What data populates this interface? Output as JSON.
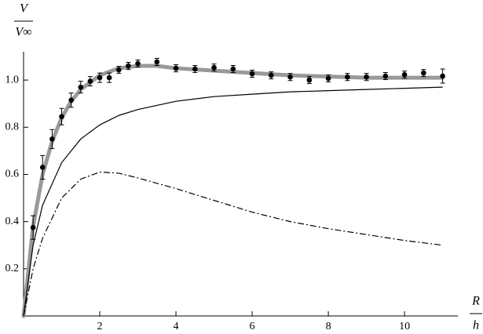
{
  "chart_data": {
    "type": "scatter",
    "y_label": {
      "numerator": "V",
      "denominator": "V∞"
    },
    "x_label": {
      "numerator": "R",
      "denominator": "h"
    },
    "xlim": [
      0,
      11.4
    ],
    "ylim": [
      0,
      1.12
    ],
    "xticks": [
      2,
      4,
      6,
      8,
      10
    ],
    "yticks": [
      0.2,
      0.4,
      0.6,
      0.8,
      {
        "value": 1.0,
        "label": "1.0"
      }
    ],
    "series": [
      {
        "type": "line",
        "style": "thick",
        "color": "#999999",
        "x": [
          0,
          0.25,
          0.5,
          0.75,
          1,
          1.25,
          1.5,
          2,
          2.5,
          3,
          3.5,
          4,
          5,
          6,
          7,
          8,
          9,
          10,
          11
        ],
        "values": [
          0,
          0.38,
          0.6,
          0.74,
          0.84,
          0.91,
          0.96,
          1.02,
          1.05,
          1.06,
          1.06,
          1.05,
          1.04,
          1.03,
          1.02,
          1.015,
          1.01,
          1.01,
          1.01
        ]
      },
      {
        "type": "line",
        "style": "solid",
        "color": "#000000",
        "x": [
          0,
          0.25,
          0.5,
          1,
          1.5,
          2,
          2.5,
          3,
          4,
          5,
          6,
          7,
          8,
          9,
          10,
          11
        ],
        "values": [
          0,
          0.3,
          0.47,
          0.65,
          0.75,
          0.81,
          0.85,
          0.875,
          0.91,
          0.93,
          0.94,
          0.95,
          0.955,
          0.96,
          0.965,
          0.97
        ]
      },
      {
        "type": "line",
        "style": "dashdot",
        "color": "#000000",
        "x": [
          0,
          0.25,
          0.5,
          1,
          1.5,
          2,
          2.5,
          3,
          4,
          5,
          6,
          7,
          8,
          9,
          10,
          11
        ],
        "values": [
          0,
          0.2,
          0.33,
          0.5,
          0.58,
          0.61,
          0.605,
          0.585,
          0.54,
          0.49,
          0.44,
          0.4,
          0.37,
          0.345,
          0.32,
          0.3
        ]
      },
      {
        "type": "errorbar",
        "color": "#000000",
        "x": [
          0.25,
          0.5,
          0.75,
          1,
          1.25,
          1.5,
          1.75,
          2,
          2.25,
          2.5,
          2.75,
          3,
          3.5,
          4,
          4.5,
          5,
          5.5,
          6,
          6.5,
          7,
          7.5,
          8,
          8.5,
          9,
          9.5,
          10,
          10.5,
          11
        ],
        "values": [
          0.375,
          0.63,
          0.75,
          0.845,
          0.915,
          0.97,
          0.995,
          1.01,
          1.01,
          1.043,
          1.06,
          1.07,
          1.077,
          1.05,
          1.047,
          1.053,
          1.047,
          1.027,
          1.02,
          1.013,
          1.0,
          1.007,
          1.013,
          1.013,
          1.017,
          1.023,
          1.03,
          1.017
        ],
        "errors": [
          0.05,
          0.05,
          0.04,
          0.035,
          0.03,
          0.025,
          0.02,
          0.02,
          0.02,
          0.015,
          0.015,
          0.015,
          0.015,
          0.015,
          0.015,
          0.015,
          0.015,
          0.015,
          0.015,
          0.015,
          0.015,
          0.015,
          0.015,
          0.015,
          0.015,
          0.015,
          0.015,
          0.03
        ]
      }
    ]
  }
}
